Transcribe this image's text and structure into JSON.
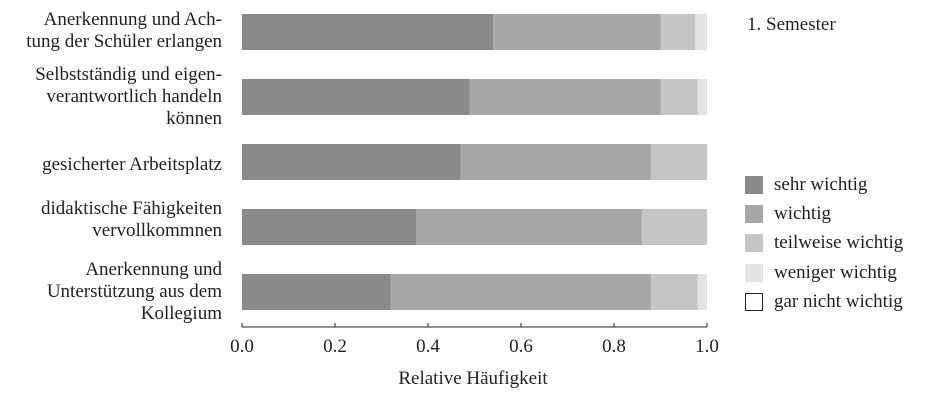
{
  "chart_data": {
    "type": "bar",
    "orientation": "horizontal",
    "stacked": true,
    "title": "1. Semester",
    "xlabel": "Relative Häufigkeit",
    "xlim": [
      0,
      1
    ],
    "xticks": [
      "0.0",
      "0.2",
      "0.4",
      "0.6",
      "0.8",
      "1.0"
    ],
    "grid": false,
    "legend_position": "right",
    "categories": [
      [
        "Anerkennung und Ach-",
        "tung der Schüler erlangen"
      ],
      [
        "Selbstständig und eigen-",
        "verantwortlich handeln",
        "können"
      ],
      [
        "gesicherter Arbeitsplatz"
      ],
      [
        "didaktische Fähigkeiten",
        "vervollkommnen"
      ],
      [
        "Anerkennung und",
        "Unterstützung aus dem",
        "Kollegium"
      ]
    ],
    "series": [
      {
        "name": "sehr wichtig",
        "color": "#8a8a8a",
        "values": [
          0.54,
          0.49,
          0.47,
          0.375,
          0.32
        ]
      },
      {
        "name": "wichtig",
        "color": "#a7a7a7",
        "values": [
          0.36,
          0.41,
          0.41,
          0.485,
          0.56
        ]
      },
      {
        "name": "teilweise wichtig",
        "color": "#c5c5c5",
        "values": [
          0.075,
          0.08,
          0.12,
          0.14,
          0.1
        ]
      },
      {
        "name": "weniger wichtig",
        "color": "#e3e3e3",
        "values": [
          0.025,
          0.02,
          0.0,
          0.0,
          0.02
        ]
      },
      {
        "name": "gar nicht wichtig",
        "color": "#ffffff",
        "values": [
          0.0,
          0.0,
          0.0,
          0.0,
          0.0
        ]
      }
    ]
  }
}
